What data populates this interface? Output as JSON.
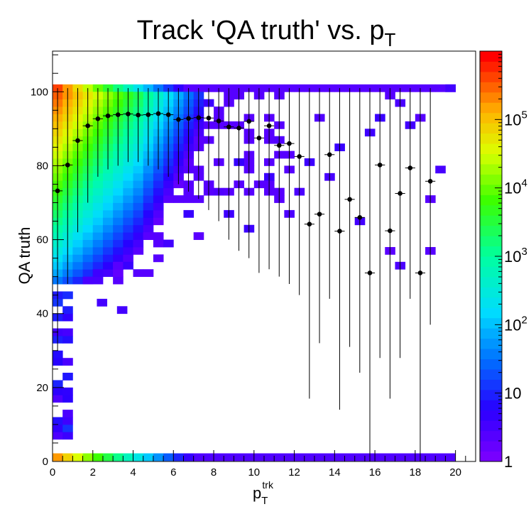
{
  "chart_data": {
    "type": "heatmap",
    "title": "Track 'QA truth' vs. p",
    "title_subscript": "T",
    "xlabel": "p",
    "xlabel_sub": "T",
    "xlabel_sup": "trk",
    "ylabel": "QA truth",
    "xlim": [
      0,
      21
    ],
    "ylim": [
      0,
      111
    ],
    "x_ticks": [
      "0",
      "2",
      "4",
      "6",
      "8",
      "10",
      "12",
      "14",
      "16",
      "18",
      "20"
    ],
    "y_ticks": [
      "0",
      "20",
      "40",
      "60",
      "80",
      "100"
    ],
    "colorbar": {
      "scale": "log",
      "range": [
        1,
        1000000
      ],
      "labels": [
        {
          "base": "1",
          "exp": ""
        },
        {
          "base": "10",
          "exp": ""
        },
        {
          "base": "10",
          "exp": "2"
        },
        {
          "base": "10",
          "exp": "3"
        },
        {
          "base": "10",
          "exp": "4"
        },
        {
          "base": "10",
          "exp": "5"
        }
      ]
    },
    "profile": [
      {
        "x": 0.25,
        "y": 73.2,
        "lo": 30,
        "hi": 101
      },
      {
        "x": 0.75,
        "y": 80.2,
        "lo": 48,
        "hi": 101
      },
      {
        "x": 1.25,
        "y": 86.8,
        "lo": 62,
        "hi": 101
      },
      {
        "x": 1.75,
        "y": 90.8,
        "lo": 70,
        "hi": 101
      },
      {
        "x": 2.25,
        "y": 92.7,
        "lo": 77,
        "hi": 101
      },
      {
        "x": 2.75,
        "y": 93.5,
        "lo": 79,
        "hi": 101
      },
      {
        "x": 3.25,
        "y": 93.8,
        "lo": 80,
        "hi": 101
      },
      {
        "x": 3.75,
        "y": 94.0,
        "lo": 81,
        "hi": 101
      },
      {
        "x": 4.25,
        "y": 93.7,
        "lo": 81,
        "hi": 101
      },
      {
        "x": 4.75,
        "y": 93.8,
        "lo": 80,
        "hi": 101
      },
      {
        "x": 5.25,
        "y": 94.1,
        "lo": 79,
        "hi": 101
      },
      {
        "x": 5.75,
        "y": 93.8,
        "lo": 77,
        "hi": 101
      },
      {
        "x": 6.25,
        "y": 92.5,
        "lo": 75,
        "hi": 101
      },
      {
        "x": 6.75,
        "y": 92.8,
        "lo": 73,
        "hi": 101
      },
      {
        "x": 7.25,
        "y": 93.0,
        "lo": 71,
        "hi": 101
      },
      {
        "x": 7.75,
        "y": 92.9,
        "lo": 68,
        "hi": 101
      },
      {
        "x": 8.25,
        "y": 92.1,
        "lo": 65,
        "hi": 101
      },
      {
        "x": 8.75,
        "y": 90.5,
        "lo": 60,
        "hi": 101
      },
      {
        "x": 9.25,
        "y": 90.2,
        "lo": 57,
        "hi": 101
      },
      {
        "x": 9.75,
        "y": 92.0,
        "lo": 55,
        "hi": 101
      },
      {
        "x": 10.25,
        "y": 87.5,
        "lo": 51,
        "hi": 101
      },
      {
        "x": 10.75,
        "y": 90.8,
        "lo": 52,
        "hi": 101
      },
      {
        "x": 11.25,
        "y": 85.5,
        "lo": 50,
        "hi": 101
      },
      {
        "x": 11.75,
        "y": 86.0,
        "lo": 48,
        "hi": 101
      },
      {
        "x": 12.25,
        "y": 82.5,
        "lo": 45,
        "hi": 101
      },
      {
        "x": 12.75,
        "y": 64.2,
        "lo": 17,
        "hi": 101
      },
      {
        "x": 13.25,
        "y": 66.9,
        "lo": 32,
        "hi": 101
      },
      {
        "x": 13.75,
        "y": 83.0,
        "lo": 44,
        "hi": 101
      },
      {
        "x": 14.25,
        "y": 62.3,
        "lo": 14,
        "hi": 101
      },
      {
        "x": 14.75,
        "y": 70.9,
        "lo": 31,
        "hi": 101
      },
      {
        "x": 15.25,
        "y": 66.0,
        "lo": 24,
        "hi": 101
      },
      {
        "x": 15.75,
        "y": 51.0,
        "lo": 0,
        "hi": 101
      },
      {
        "x": 16.25,
        "y": 80.2,
        "lo": 28,
        "hi": 101
      },
      {
        "x": 16.75,
        "y": 62.4,
        "lo": 17,
        "hi": 101
      },
      {
        "x": 17.25,
        "y": 72.5,
        "lo": 28,
        "hi": 101
      },
      {
        "x": 17.75,
        "y": 79.4,
        "lo": 44,
        "hi": 101
      },
      {
        "x": 18.25,
        "y": 51.0,
        "lo": 0,
        "hi": 101
      },
      {
        "x": 18.75,
        "y": 75.8,
        "lo": 37,
        "hi": 101
      }
    ]
  }
}
